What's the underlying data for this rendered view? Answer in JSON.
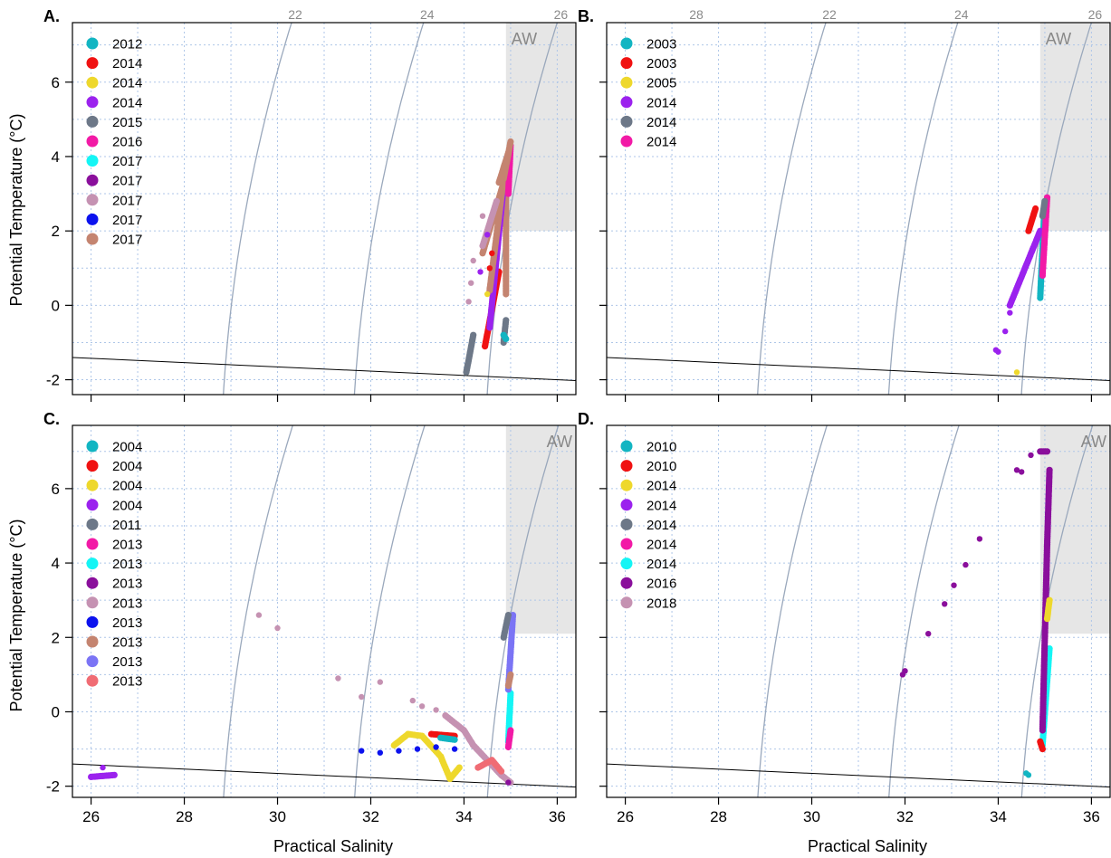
{
  "colors": {
    "grid": "#aec6e8",
    "isopycnal": "#9aa8bc",
    "aw_region": "#e6e6e6",
    "freezing_line": "#000000"
  },
  "shared": {
    "xlabel": "Practical Salinity",
    "ylabel": "Potential Temperature (°C)",
    "x_ticks": [
      26,
      28,
      30,
      32,
      34,
      36
    ],
    "y_ticks": [
      -2,
      0,
      2,
      4,
      6
    ],
    "isopycnal_labels": [
      "22",
      "24",
      "26",
      "28"
    ],
    "aw_label": "AW"
  },
  "chart_data": [
    {
      "panel": "A.",
      "type": "scatter",
      "xlabel": "",
      "ylabel": "Potential Temperature (°C)",
      "xlim": [
        25.6,
        36.4
      ],
      "ylim": [
        -2.4,
        7.6
      ],
      "isopycnals": [
        22,
        24,
        26,
        28
      ],
      "aw_region": {
        "x": [
          34.9,
          36.4
        ],
        "y": [
          2,
          7.6
        ]
      },
      "legend_position": "top-left",
      "series": [
        {
          "name": "2012",
          "color": "#12b5c2"
        },
        {
          "name": "2014",
          "color": "#f01212"
        },
        {
          "name": "2014",
          "color": "#eed82c"
        },
        {
          "name": "2014",
          "color": "#9b22ee"
        },
        {
          "name": "2015",
          "color": "#6d7888"
        },
        {
          "name": "2016",
          "color": "#f21aa6"
        },
        {
          "name": "2017",
          "color": "#14f5f5"
        },
        {
          "name": "2017",
          "color": "#8a0f9c"
        },
        {
          "name": "2017",
          "color": "#c592b2"
        },
        {
          "name": "2017",
          "color": "#0c12ee"
        },
        {
          "name": "2017",
          "color": "#c48470"
        }
      ],
      "tracks": [
        {
          "s": 10,
          "pts": [
            [
              34.4,
              1.4
            ],
            [
              34.85,
              3.3
            ],
            [
              34.9,
              3.3
            ],
            [
              34.9,
              0.3
            ]
          ]
        },
        {
          "s": 1,
          "pts": [
            [
              34.45,
              -1.1
            ],
            [
              34.75,
              0.9
            ]
          ]
        },
        {
          "s": 3,
          "pts": [
            [
              34.55,
              -0.6
            ],
            [
              34.85,
              3.2
            ]
          ]
        },
        {
          "s": 4,
          "pts": [
            [
              34.05,
              -1.8
            ],
            [
              34.2,
              -0.8
            ]
          ]
        },
        {
          "s": 4,
          "pts": [
            [
              34.85,
              -1.0
            ],
            [
              34.9,
              -0.4
            ]
          ]
        },
        {
          "s": 10,
          "pts": [
            [
              34.55,
              0.4
            ],
            [
              34.85,
              3.4
            ]
          ]
        },
        {
          "s": 5,
          "pts": [
            [
              34.95,
              3.0
            ],
            [
              35.0,
              4.3
            ]
          ]
        },
        {
          "s": 10,
          "pts": [
            [
              34.75,
              3.3
            ],
            [
              34.95,
              4.1
            ]
          ]
        },
        {
          "s": 0,
          "pts": [
            [
              34.85,
              -0.8
            ],
            [
              34.9,
              -0.9
            ]
          ]
        },
        {
          "s": 8,
          "pts": [
            [
              34.4,
              1.6
            ],
            [
              34.7,
              2.8
            ]
          ]
        },
        {
          "s": 10,
          "pts": [
            [
              34.85,
              3.4
            ],
            [
              35.0,
              4.4
            ]
          ]
        }
      ],
      "scatter": [
        {
          "s": 8,
          "pts": [
            [
              34.1,
              0.1
            ],
            [
              34.15,
              0.6
            ],
            [
              34.2,
              1.2
            ],
            [
              34.4,
              2.4
            ]
          ]
        },
        {
          "s": 3,
          "pts": [
            [
              34.35,
              0.9
            ],
            [
              34.5,
              1.9
            ]
          ]
        },
        {
          "s": 2,
          "pts": [
            [
              34.5,
              0.3
            ]
          ]
        },
        {
          "s": 1,
          "pts": [
            [
              34.55,
              1.0
            ],
            [
              34.6,
              1.4
            ]
          ]
        }
      ]
    },
    {
      "panel": "B.",
      "type": "scatter",
      "xlabel": "",
      "ylabel": "",
      "xlim": [
        25.6,
        36.4
      ],
      "ylim": [
        -2.4,
        7.6
      ],
      "isopycnals": [
        22,
        24,
        26,
        28
      ],
      "aw_region": {
        "x": [
          34.9,
          36.4
        ],
        "y": [
          2,
          7.6
        ]
      },
      "legend_position": "top-left",
      "series": [
        {
          "name": "2003",
          "color": "#12b5c2"
        },
        {
          "name": "2003",
          "color": "#f01212"
        },
        {
          "name": "2005",
          "color": "#eed82c"
        },
        {
          "name": "2014",
          "color": "#9b22ee"
        },
        {
          "name": "2014",
          "color": "#6d7888"
        },
        {
          "name": "2014",
          "color": "#f21aa6"
        }
      ],
      "tracks": [
        {
          "s": 0,
          "pts": [
            [
              34.9,
              0.2
            ],
            [
              35.0,
              2.8
            ]
          ]
        },
        {
          "s": 1,
          "pts": [
            [
              34.65,
              2.0
            ],
            [
              34.8,
              2.6
            ]
          ]
        },
        {
          "s": 3,
          "pts": [
            [
              34.25,
              -0.0
            ],
            [
              34.9,
              2.0
            ]
          ]
        },
        {
          "s": 5,
          "pts": [
            [
              34.95,
              0.8
            ],
            [
              35.05,
              2.9
            ]
          ]
        },
        {
          "s": 4,
          "pts": [
            [
              34.95,
              2.4
            ],
            [
              35.0,
              2.8
            ]
          ]
        }
      ],
      "scatter": [
        {
          "s": 3,
          "pts": [
            [
              33.95,
              -1.2
            ],
            [
              34.0,
              -1.25
            ],
            [
              34.15,
              -0.7
            ],
            [
              34.25,
              -0.2
            ]
          ]
        },
        {
          "s": 2,
          "pts": [
            [
              34.4,
              -1.8
            ]
          ]
        }
      ]
    },
    {
      "panel": "C.",
      "type": "scatter",
      "xlabel": "",
      "ylabel": "Potential Temperature (°C)",
      "xlim": [
        25.6,
        36.4
      ],
      "ylim": [
        -2.3,
        7.7
      ],
      "isopycnals": [
        22,
        24,
        26,
        28
      ],
      "aw_region": {
        "x": [
          34.9,
          36.4
        ],
        "y": [
          2.1,
          7.7
        ]
      },
      "aw_label": "AW",
      "legend_position": "top-left",
      "series": [
        {
          "name": "2004",
          "color": "#12b5c2"
        },
        {
          "name": "2004",
          "color": "#f01212"
        },
        {
          "name": "2004",
          "color": "#eed82c"
        },
        {
          "name": "2004",
          "color": "#9b22ee"
        },
        {
          "name": "2011",
          "color": "#6d7888"
        },
        {
          "name": "2013",
          "color": "#f21aa6"
        },
        {
          "name": "2013",
          "color": "#14f5f5"
        },
        {
          "name": "2013",
          "color": "#8a0f9c"
        },
        {
          "name": "2013",
          "color": "#c592b2"
        },
        {
          "name": "2013",
          "color": "#0c12ee"
        },
        {
          "name": "2013",
          "color": "#c48470"
        },
        {
          "name": "2013",
          "color": "#7b74f5"
        },
        {
          "name": "2013",
          "color": "#f06c74"
        }
      ],
      "tracks": [
        {
          "s": 3,
          "pts": [
            [
              26.0,
              -1.75
            ],
            [
              26.5,
              -1.7
            ]
          ]
        },
        {
          "s": 2,
          "pts": [
            [
              32.5,
              -0.9
            ],
            [
              32.8,
              -0.6
            ],
            [
              33.1,
              -0.65
            ],
            [
              33.5,
              -1.2
            ],
            [
              33.7,
              -1.8
            ],
            [
              33.9,
              -1.5
            ]
          ]
        },
        {
          "s": 1,
          "pts": [
            [
              33.3,
              -0.6
            ],
            [
              33.8,
              -0.65
            ]
          ]
        },
        {
          "s": 0,
          "pts": [
            [
              33.5,
              -0.7
            ],
            [
              33.8,
              -0.75
            ]
          ]
        },
        {
          "s": 8,
          "pts": [
            [
              33.6,
              -0.1
            ],
            [
              34.0,
              -0.5
            ],
            [
              34.2,
              -0.9
            ],
            [
              34.5,
              -1.3
            ],
            [
              34.8,
              -1.7
            ],
            [
              35.0,
              -1.9
            ]
          ]
        },
        {
          "s": 12,
          "pts": [
            [
              34.3,
              -1.5
            ],
            [
              34.6,
              -1.3
            ],
            [
              34.8,
              -1.6
            ]
          ]
        },
        {
          "s": 6,
          "pts": [
            [
              34.95,
              -0.8
            ],
            [
              35.0,
              0.5
            ]
          ]
        },
        {
          "s": 11,
          "pts": [
            [
              34.95,
              0.6
            ],
            [
              35.05,
              2.6
            ]
          ]
        },
        {
          "s": 4,
          "pts": [
            [
              34.85,
              2.0
            ],
            [
              34.95,
              2.6
            ]
          ]
        },
        {
          "s": 5,
          "pts": [
            [
              34.95,
              -0.95
            ],
            [
              35.0,
              -0.5
            ]
          ]
        },
        {
          "s": 10,
          "pts": [
            [
              34.95,
              0.7
            ],
            [
              35.0,
              1.0
            ]
          ]
        }
      ],
      "scatter": [
        {
          "s": 8,
          "pts": [
            [
              29.6,
              2.6
            ],
            [
              30.0,
              2.25
            ],
            [
              31.3,
              0.9
            ],
            [
              31.8,
              0.4
            ],
            [
              32.2,
              0.8
            ],
            [
              32.9,
              0.3
            ],
            [
              33.1,
              0.15
            ],
            [
              33.4,
              0.05
            ]
          ]
        },
        {
          "s": 9,
          "pts": [
            [
              31.8,
              -1.05
            ],
            [
              32.2,
              -1.1
            ],
            [
              32.6,
              -1.05
            ],
            [
              33.0,
              -1.0
            ],
            [
              33.4,
              -0.95
            ],
            [
              33.8,
              -1.0
            ]
          ]
        },
        {
          "s": 7,
          "pts": [
            [
              34.95,
              -1.9
            ]
          ]
        },
        {
          "s": 3,
          "pts": [
            [
              26.25,
              -1.5
            ]
          ]
        }
      ]
    },
    {
      "panel": "D.",
      "type": "scatter",
      "xlabel": "",
      "ylabel": "",
      "xlim": [
        25.6,
        36.4
      ],
      "ylim": [
        -2.3,
        7.7
      ],
      "isopycnals": [
        22,
        24,
        26,
        28
      ],
      "aw_region": {
        "x": [
          34.9,
          36.4
        ],
        "y": [
          2.1,
          7.7
        ]
      },
      "aw_label": "AW",
      "legend_position": "top-left",
      "series": [
        {
          "name": "2010",
          "color": "#12b5c2"
        },
        {
          "name": "2010",
          "color": "#f01212"
        },
        {
          "name": "2014",
          "color": "#eed82c"
        },
        {
          "name": "2014",
          "color": "#9b22ee"
        },
        {
          "name": "2014",
          "color": "#6d7888"
        },
        {
          "name": "2014",
          "color": "#f21aa6"
        },
        {
          "name": "2014",
          "color": "#14f5f5"
        },
        {
          "name": "2016",
          "color": "#8a0f9c"
        },
        {
          "name": "2018",
          "color": "#c592b2"
        }
      ],
      "tracks": [
        {
          "s": 6,
          "pts": [
            [
              34.95,
              -0.9
            ],
            [
              35.1,
              1.7
            ]
          ]
        },
        {
          "s": 7,
          "pts": [
            [
              34.95,
              -0.5
            ],
            [
              35.05,
              4.5
            ],
            [
              35.1,
              6.5
            ]
          ]
        },
        {
          "s": 1,
          "pts": [
            [
              34.9,
              -0.8
            ],
            [
              34.95,
              -1.0
            ]
          ]
        },
        {
          "s": 2,
          "pts": [
            [
              35.05,
              2.5
            ],
            [
              35.1,
              3.0
            ]
          ]
        },
        {
          "s": 7,
          "pts": [
            [
              34.9,
              7.0
            ],
            [
              35.05,
              7.0
            ]
          ]
        }
      ],
      "scatter": [
        {
          "s": 7,
          "pts": [
            [
              31.95,
              1.0
            ],
            [
              32.0,
              1.1
            ],
            [
              32.5,
              2.1
            ],
            [
              32.85,
              2.9
            ],
            [
              33.05,
              3.4
            ],
            [
              33.3,
              3.95
            ],
            [
              33.6,
              4.65
            ],
            [
              34.4,
              6.5
            ],
            [
              34.5,
              6.45
            ],
            [
              34.7,
              6.9
            ]
          ]
        },
        {
          "s": 0,
          "pts": [
            [
              34.6,
              -1.65
            ],
            [
              34.65,
              -1.7
            ]
          ]
        }
      ]
    }
  ]
}
